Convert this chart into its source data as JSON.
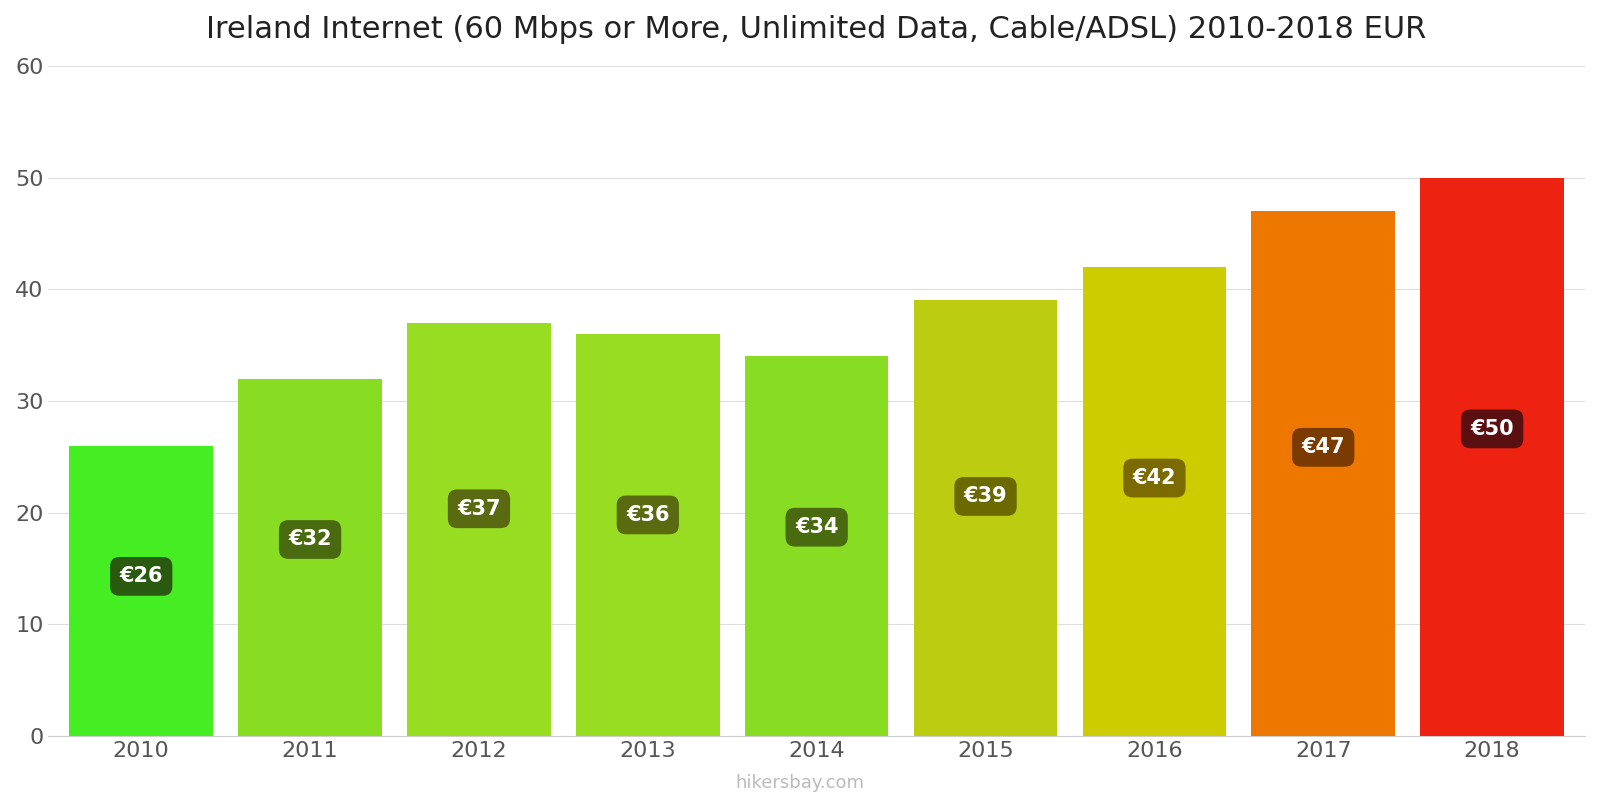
{
  "title": "Ireland Internet (60 Mbps or More, Unlimited Data, Cable/ADSL) 2010-2018 EUR",
  "years": [
    2010,
    2011,
    2012,
    2013,
    2014,
    2015,
    2016,
    2017,
    2018
  ],
  "values": [
    26,
    32,
    37,
    36,
    34,
    39,
    42,
    47,
    50
  ],
  "labels": [
    "€26",
    "€32",
    "€37",
    "€36",
    "€34",
    "€39",
    "€42",
    "€47",
    "€50"
  ],
  "bar_colors": [
    "#44ee22",
    "#88dd22",
    "#99dd22",
    "#99dd22",
    "#88dd22",
    "#bbcc11",
    "#cccc00",
    "#ee7700",
    "#ee2211"
  ],
  "label_box_colors": [
    "#2a5a10",
    "#4a6a10",
    "#5a6a10",
    "#5a6a10",
    "#4a6a10",
    "#6a6a00",
    "#7a6a00",
    "#7a3a00",
    "#5a1010"
  ],
  "ylim": [
    0,
    60
  ],
  "yticks": [
    0,
    10,
    20,
    30,
    40,
    50,
    60
  ],
  "label_text_color": "#ffffff",
  "watermark": "hikersbay.com",
  "background_color": "#ffffff",
  "title_fontsize": 22,
  "axis_fontsize": 16,
  "bar_width": 0.85
}
